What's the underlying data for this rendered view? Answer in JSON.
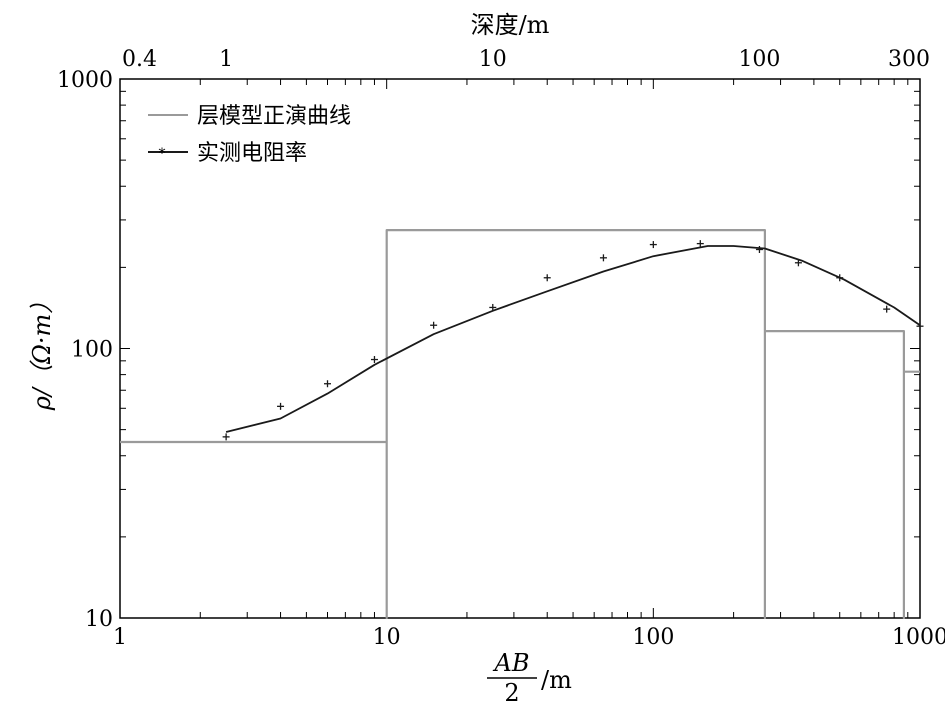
{
  "chart_data": {
    "type": "line",
    "xlabel": {
      "numerator": "AB",
      "denominator": "2",
      "unit": "/m"
    },
    "ylabel": "ρ/（Ω·m）",
    "top_axis_label": "深度/m",
    "x_scale": "log",
    "y_scale": "log",
    "xlim": [
      1,
      1000
    ],
    "ylim": [
      10,
      1000
    ],
    "x_ticks": [
      {
        "value": 1,
        "label": "1"
      },
      {
        "value": 10,
        "label": "10"
      },
      {
        "value": 100,
        "label": "100"
      },
      {
        "value": 1000,
        "label": "1000"
      }
    ],
    "y_ticks": [
      {
        "value": 10,
        "label": "10"
      },
      {
        "value": 100,
        "label": "100"
      },
      {
        "value": 1000,
        "label": "1000"
      }
    ],
    "top_ticks": [
      {
        "value": 1,
        "label": "0.4"
      },
      {
        "value": 2.5,
        "label": "1"
      },
      {
        "value": 25,
        "label": "10"
      },
      {
        "value": 250,
        "label": "100"
      },
      {
        "value": 1000,
        "label": "300"
      }
    ],
    "grid": false,
    "legend_position": "top-left",
    "legend": [
      {
        "label": "层模型正演曲线",
        "style": "line",
        "color": "#9a9a9a"
      },
      {
        "label": "实测电阻率",
        "style": "marker-line",
        "color": "#1a1a1a"
      }
    ],
    "series": [
      {
        "name": "层模型正演曲线",
        "kind": "step",
        "color": "#9a9a9a",
        "points": [
          [
            1,
            45
          ],
          [
            10,
            45
          ],
          [
            10,
            10
          ],
          [
            10,
            275
          ],
          [
            262,
            275
          ],
          [
            262,
            10
          ],
          [
            262,
            116
          ],
          [
            870,
            116
          ],
          [
            870,
            10
          ],
          [
            870,
            82
          ],
          [
            1000,
            82
          ]
        ]
      },
      {
        "name": "实测电阻率-fit",
        "kind": "curve",
        "color": "#1a1a1a",
        "points": [
          [
            2.5,
            49
          ],
          [
            4,
            55
          ],
          [
            6,
            68
          ],
          [
            9,
            87
          ],
          [
            15,
            113
          ],
          [
            25,
            138
          ],
          [
            40,
            163
          ],
          [
            65,
            193
          ],
          [
            100,
            220
          ],
          [
            160,
            240
          ],
          [
            200,
            240
          ],
          [
            262,
            235
          ],
          [
            360,
            212
          ],
          [
            520,
            180
          ],
          [
            800,
            142
          ],
          [
            1000,
            122
          ]
        ]
      },
      {
        "name": "实测电阻率",
        "kind": "markers",
        "color": "#1a1a1a",
        "points": [
          [
            2.5,
            47
          ],
          [
            4,
            61
          ],
          [
            6,
            74
          ],
          [
            9,
            91
          ],
          [
            15,
            122
          ],
          [
            25,
            142
          ],
          [
            40,
            183
          ],
          [
            65,
            217
          ],
          [
            100,
            243
          ],
          [
            150,
            245
          ],
          [
            250,
            233
          ],
          [
            350,
            208
          ],
          [
            500,
            183
          ],
          [
            750,
            140
          ],
          [
            1000,
            121
          ]
        ]
      }
    ]
  }
}
